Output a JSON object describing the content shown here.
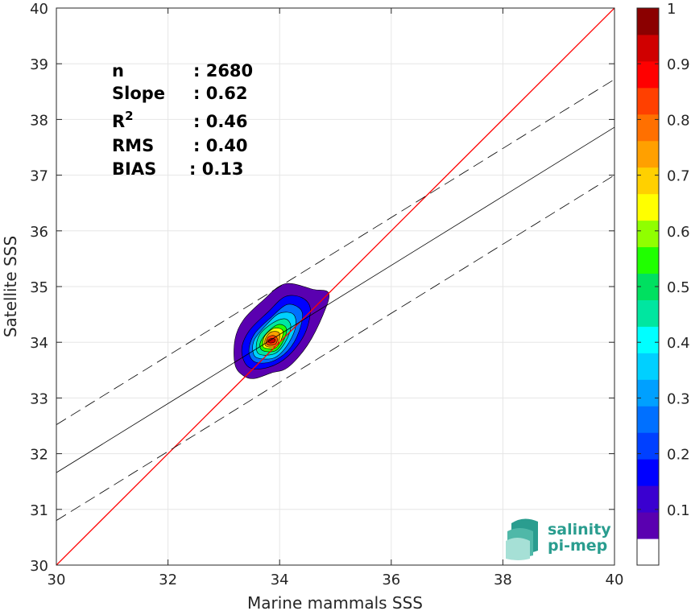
{
  "chart_data": {
    "type": "contour-density-scatter",
    "xlabel": "Marine mammals SSS",
    "ylabel": "Satellite SSS",
    "xlim": [
      30,
      40
    ],
    "ylim": [
      30,
      40
    ],
    "xticks": [
      30,
      32,
      34,
      36,
      38,
      40
    ],
    "yticks": [
      30,
      31,
      32,
      33,
      34,
      35,
      36,
      37,
      38,
      39,
      40
    ],
    "grid": true,
    "stats": [
      {
        "label": "n",
        "value": ": 2680"
      },
      {
        "label": "Slope",
        "value": ": 0.62"
      },
      {
        "label": "R",
        "sup": "2",
        "value": ": 0.46"
      },
      {
        "label": "RMS",
        "value": ": 0.40"
      },
      {
        "label": "BIAS",
        "value": ": 0.13"
      }
    ],
    "lines": [
      {
        "role": "one-to-one",
        "style": "solid",
        "color": "#ff0000",
        "points": [
          [
            30,
            30
          ],
          [
            40,
            40
          ]
        ]
      },
      {
        "role": "regression",
        "style": "solid",
        "color": "#000000",
        "points": [
          [
            30,
            31.66
          ],
          [
            40,
            37.86
          ]
        ]
      },
      {
        "role": "upper-bound",
        "style": "dashed",
        "color": "#000000",
        "points": [
          [
            30,
            32.52
          ],
          [
            40,
            38.72
          ]
        ]
      },
      {
        "role": "lower-bound",
        "style": "dashed",
        "color": "#000000",
        "points": [
          [
            30,
            30.8
          ],
          [
            40,
            37.0
          ]
        ]
      }
    ],
    "density_contours": {
      "center": [
        33.85,
        34.0
      ],
      "levels": [
        0.05,
        0.1,
        0.15,
        0.2,
        0.25,
        0.3,
        0.35,
        0.4,
        0.45,
        0.5,
        0.55,
        0.6,
        0.65,
        0.7,
        0.75,
        0.8,
        0.85,
        0.9,
        0.95
      ],
      "rings": [
        {
          "level": 0.05,
          "points": [
            [
              33.35,
              33.4
            ],
            [
              33.55,
              33.35
            ],
            [
              33.85,
              33.45
            ],
            [
              34.15,
              33.55
            ],
            [
              34.5,
              33.95
            ],
            [
              34.78,
              34.5
            ],
            [
              34.88,
              34.88
            ],
            [
              34.6,
              34.95
            ],
            [
              34.1,
              35.05
            ],
            [
              33.7,
              34.75
            ],
            [
              33.35,
              34.4
            ],
            [
              33.2,
              34.05
            ],
            [
              33.2,
              33.6
            ]
          ]
        },
        {
          "level": 0.15,
          "points": [
            [
              33.45,
              33.55
            ],
            [
              33.8,
              33.55
            ],
            [
              34.15,
              33.75
            ],
            [
              34.45,
              34.15
            ],
            [
              34.55,
              34.6
            ],
            [
              34.4,
              34.8
            ],
            [
              34.1,
              34.82
            ],
            [
              33.8,
              34.55
            ],
            [
              33.45,
              34.2
            ],
            [
              33.32,
              33.85
            ]
          ]
        },
        {
          "level": 0.25,
          "points": [
            [
              33.55,
              33.65
            ],
            [
              33.85,
              33.65
            ],
            [
              34.15,
              33.85
            ],
            [
              34.35,
              34.2
            ],
            [
              34.4,
              34.55
            ],
            [
              34.15,
              34.68
            ],
            [
              33.85,
              34.45
            ],
            [
              33.55,
              34.15
            ],
            [
              33.45,
              33.85
            ]
          ]
        },
        {
          "level": 0.35,
          "points": [
            [
              33.6,
              33.72
            ],
            [
              33.9,
              33.72
            ],
            [
              34.12,
              33.92
            ],
            [
              34.28,
              34.25
            ],
            [
              34.25,
              34.5
            ],
            [
              34.0,
              34.52
            ],
            [
              33.75,
              34.3
            ],
            [
              33.55,
              34.05
            ],
            [
              33.52,
              33.85
            ]
          ]
        },
        {
          "level": 0.45,
          "points": [
            [
              33.65,
              33.78
            ],
            [
              33.92,
              33.8
            ],
            [
              34.1,
              34.0
            ],
            [
              34.2,
              34.28
            ],
            [
              34.1,
              34.42
            ],
            [
              33.88,
              34.35
            ],
            [
              33.65,
              34.15
            ],
            [
              33.58,
              33.92
            ]
          ]
        },
        {
          "level": 0.55,
          "points": [
            [
              33.7,
              33.85
            ],
            [
              33.93,
              33.85
            ],
            [
              34.08,
              34.05
            ],
            [
              34.12,
              34.25
            ],
            [
              33.98,
              34.32
            ],
            [
              33.78,
              34.18
            ],
            [
              33.65,
              33.98
            ]
          ]
        },
        {
          "level": 0.65,
          "points": [
            [
              33.73,
              33.9
            ],
            [
              33.93,
              33.9
            ],
            [
              34.04,
              34.08
            ],
            [
              34.05,
              34.22
            ],
            [
              33.9,
              34.25
            ],
            [
              33.74,
              34.12
            ],
            [
              33.7,
              33.98
            ]
          ]
        },
        {
          "level": 0.75,
          "points": [
            [
              33.76,
              33.93
            ],
            [
              33.93,
              33.93
            ],
            [
              34.0,
              34.08
            ],
            [
              33.98,
              34.18
            ],
            [
              33.84,
              34.18
            ],
            [
              33.74,
              34.05
            ]
          ]
        },
        {
          "level": 0.85,
          "points": [
            [
              33.8,
              33.95
            ],
            [
              33.92,
              33.96
            ],
            [
              33.96,
              34.06
            ],
            [
              33.9,
              34.12
            ],
            [
              33.8,
              34.1
            ],
            [
              33.76,
              34.0
            ]
          ]
        },
        {
          "level": 0.95,
          "points": [
            [
              33.82,
              33.99
            ],
            [
              33.9,
              34.0
            ],
            [
              33.92,
              34.05
            ],
            [
              33.85,
              34.07
            ],
            [
              33.79,
              34.03
            ]
          ]
        }
      ]
    },
    "colorbar": {
      "ticks": [
        0.1,
        0.2,
        0.3,
        0.4,
        0.5,
        0.6,
        0.7,
        0.8,
        0.9,
        1
      ],
      "tick_labels": [
        "0.1",
        "0.2",
        "0.3",
        "0.4",
        "0.5",
        "0.6",
        "0.7",
        "0.8",
        "0.9",
        "1"
      ],
      "range": [
        0,
        1
      ],
      "colors": [
        "#ffffff",
        "#5a00b0",
        "#3a00d0",
        "#0000ff",
        "#0040ff",
        "#0070ff",
        "#00a0ff",
        "#00d0ff",
        "#00ffff",
        "#00e6a0",
        "#00e060",
        "#20ff00",
        "#90ff00",
        "#ffff00",
        "#ffd000",
        "#ffa000",
        "#ff7000",
        "#ff4000",
        "#ff0000",
        "#d00000",
        "#8b0000"
      ]
    }
  },
  "logo": {
    "line1": "salinity",
    "line2": "pi-mep",
    "colors": {
      "text": "#2a9d8f",
      "wave_dark": "#2a9d8f",
      "wave_light": "#7fd1c4"
    }
  }
}
